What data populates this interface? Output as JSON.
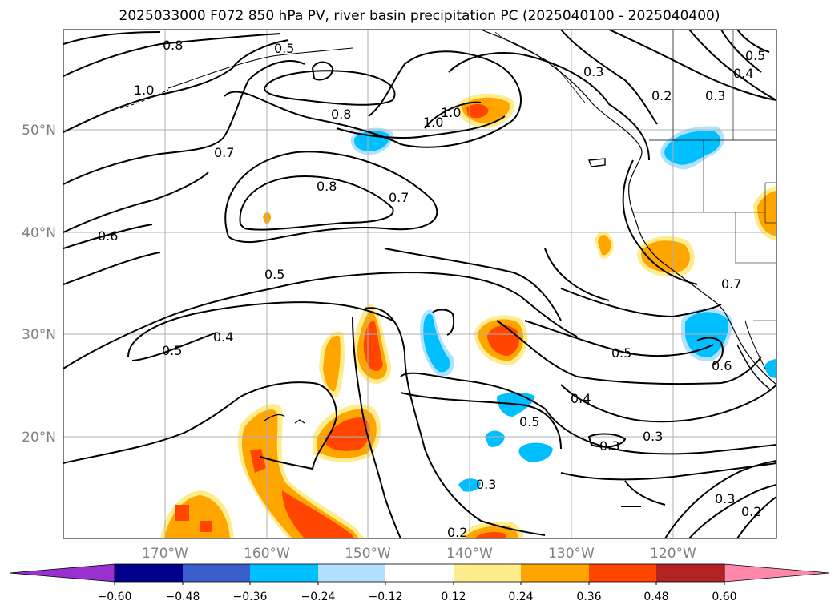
{
  "title": "2025033000 F072 850 hPa PV, river basin precipitation PC (2025040100 - 2025040400)",
  "latitude_labels": [
    "50°N",
    "40°N",
    "30°N",
    "20°N"
  ],
  "longitude_labels": [
    "170°W",
    "160°W",
    "150°W",
    "140°W",
    "130°W",
    "120°W"
  ],
  "colorbar": {
    "colors": [
      "#9b30d0",
      "#00008b",
      "#3a5fcd",
      "#00bfff",
      "#b0e2ff",
      "#ffffff",
      "#ffec8b",
      "#ffa500",
      "#ff4500",
      "#b22222",
      "#ff88aa"
    ],
    "tick_labels": [
      "−0.60",
      "−0.48",
      "−0.36",
      "−0.24",
      "−0.12",
      "0.12",
      "0.24",
      "0.36",
      "0.48",
      "0.60"
    ]
  },
  "contour_labels": [
    "0.8",
    "1.0",
    "0.7",
    "0.6",
    "0.5",
    "0.4",
    "0.5",
    "0.8",
    "0.7",
    "0.8",
    "1.0",
    "1.0",
    "0.3",
    "0.2",
    "0.3",
    "0.4",
    "0.5",
    "0.5",
    "0.4",
    "0.3",
    "0.3",
    "0.5",
    "0.3",
    "0.3",
    "0.2",
    "0.2",
    "0.6",
    "0.7",
    "0.5"
  ]
}
